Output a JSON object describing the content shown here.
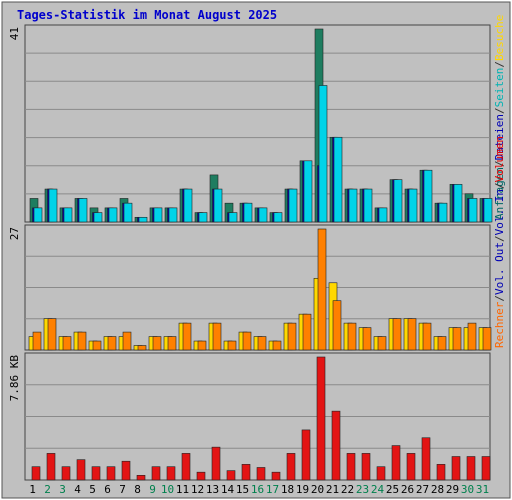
{
  "title": "Tages-Statistik im Monat August 2025",
  "chart_data": [
    {
      "type": "bar",
      "panel": "top",
      "ymax_label": "41",
      "ylim": [
        0,
        41
      ],
      "right_labels": [
        {
          "text": "Anfragen",
          "color": "#006666"
        },
        {
          "text": "/",
          "color": "#333333"
        },
        {
          "text": "Dateien",
          "color": "#0000b3"
        },
        {
          "text": "/",
          "color": "#333333"
        },
        {
          "text": "Seiten",
          "color": "#00b3b3"
        },
        {
          "text": "/",
          "color": "#333333"
        },
        {
          "text": "Besuche",
          "color": "#ffd700"
        }
      ],
      "series": [
        {
          "name": "Anfragen",
          "color": "#1e7d60",
          "values": [
            5,
            7,
            3,
            5,
            3,
            3,
            5,
            1,
            3,
            3,
            7,
            2,
            10,
            4,
            4,
            3,
            2,
            7,
            13,
            41,
            18,
            7,
            7,
            3,
            9,
            7,
            11,
            4,
            8,
            6,
            5
          ]
        },
        {
          "name": "Dateien",
          "color": "#0000b3",
          "values": [
            3,
            7,
            3,
            5,
            2,
            3,
            4,
            1,
            3,
            3,
            7,
            2,
            7,
            2,
            4,
            3,
            2,
            7,
            13,
            12,
            18,
            7,
            7,
            3,
            9,
            7,
            11,
            4,
            8,
            5,
            5
          ]
        },
        {
          "name": "Seiten",
          "color": "#00d3e8",
          "values": [
            3,
            7,
            3,
            5,
            2,
            3,
            4,
            1,
            3,
            3,
            7,
            2,
            7,
            2,
            4,
            3,
            2,
            7,
            13,
            29,
            18,
            7,
            7,
            3,
            9,
            7,
            11,
            4,
            8,
            5,
            5
          ]
        }
      ]
    },
    {
      "type": "bar",
      "panel": "middle",
      "ymax_label": "27",
      "ylim": [
        0,
        27
      ],
      "right_labels": [
        {
          "text": "Rechner",
          "color": "#ff6600"
        },
        {
          "text": "/",
          "color": "#333333"
        },
        {
          "text": "Vol. Out",
          "color": "#0000b3"
        },
        {
          "text": "/",
          "color": "#333333"
        },
        {
          "text": "Vol. In",
          "color": "#0000b3"
        },
        {
          "text": "/",
          "color": "#333333"
        },
        {
          "text": "Volumen",
          "color": "#e60000"
        }
      ],
      "series": [
        {
          "name": "Besuche",
          "color": "#ffd800",
          "values": [
            3,
            7,
            3,
            4,
            2,
            3,
            3,
            1,
            3,
            3,
            6,
            2,
            6,
            2,
            4,
            3,
            2,
            6,
            8,
            16,
            15,
            6,
            5,
            3,
            7,
            7,
            6,
            3,
            5,
            5,
            5
          ]
        },
        {
          "name": "Rechner",
          "color": "#ff8000",
          "values": [
            4,
            7,
            3,
            4,
            2,
            3,
            4,
            1,
            3,
            3,
            6,
            2,
            6,
            2,
            4,
            3,
            2,
            6,
            8,
            27,
            11,
            6,
            5,
            3,
            7,
            7,
            6,
            3,
            5,
            6,
            5
          ]
        }
      ]
    },
    {
      "type": "bar",
      "panel": "bottom",
      "ymax_label": "7.86 KB",
      "ylim": [
        0,
        7.86
      ],
      "series": [
        {
          "name": "Volumen",
          "color": "#e31414",
          "values": [
            0.85,
            1.7,
            0.85,
            1.3,
            0.85,
            0.85,
            1.2,
            0.3,
            0.85,
            0.85,
            1.7,
            0.5,
            2.1,
            0.6,
            1.0,
            0.8,
            0.5,
            1.7,
            3.2,
            7.86,
            4.4,
            1.7,
            1.7,
            0.85,
            2.2,
            1.7,
            2.7,
            1.0,
            1.5,
            1.5,
            1.5
          ]
        }
      ]
    }
  ],
  "days": [
    {
      "label": "1",
      "color": "#000000"
    },
    {
      "label": "2",
      "color": "#00804d"
    },
    {
      "label": "3",
      "color": "#00804d"
    },
    {
      "label": "4",
      "color": "#000000"
    },
    {
      "label": "5",
      "color": "#000000"
    },
    {
      "label": "6",
      "color": "#000000"
    },
    {
      "label": "7",
      "color": "#000000"
    },
    {
      "label": "8",
      "color": "#000000"
    },
    {
      "label": "9",
      "color": "#00804d"
    },
    {
      "label": "10",
      "color": "#00804d"
    },
    {
      "label": "11",
      "color": "#000000"
    },
    {
      "label": "12",
      "color": "#000000"
    },
    {
      "label": "13",
      "color": "#000000"
    },
    {
      "label": "14",
      "color": "#000000"
    },
    {
      "label": "15",
      "color": "#000000"
    },
    {
      "label": "16",
      "color": "#00804d"
    },
    {
      "label": "17",
      "color": "#00804d"
    },
    {
      "label": "18",
      "color": "#000000"
    },
    {
      "label": "19",
      "color": "#000000"
    },
    {
      "label": "20",
      "color": "#000000"
    },
    {
      "label": "21",
      "color": "#000000"
    },
    {
      "label": "22",
      "color": "#000000"
    },
    {
      "label": "23",
      "color": "#00804d"
    },
    {
      "label": "24",
      "color": "#00804d"
    },
    {
      "label": "25",
      "color": "#000000"
    },
    {
      "label": "26",
      "color": "#000000"
    },
    {
      "label": "27",
      "color": "#000000"
    },
    {
      "label": "28",
      "color": "#000000"
    },
    {
      "label": "29",
      "color": "#000000"
    },
    {
      "label": "30",
      "color": "#00804d"
    },
    {
      "label": "31",
      "color": "#00804d"
    }
  ],
  "colors": {
    "background": "#ffffff",
    "panel": "#c0c0c0",
    "gridline": "#888888",
    "title": "#0000cc",
    "border": "#333333"
  }
}
